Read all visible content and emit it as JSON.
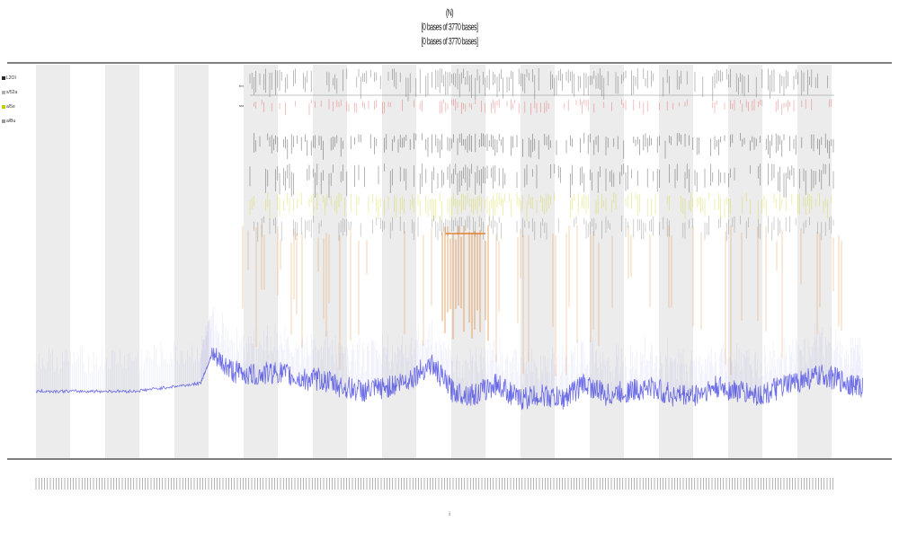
{
  "titles": [
    "(N)",
    "[0 bases of 3770 bases]",
    "[0 bases of 3770 bases]"
  ],
  "legend": [
    {
      "label": "L2OI",
      "color": "#2a2a2a"
    },
    {
      "label": "s/52a",
      "color": "#b0b0b0"
    },
    {
      "label": "a/5e",
      "color": "#c8c800"
    },
    {
      "label": "a/Bu",
      "color": "#999999"
    }
  ],
  "tracks": {
    "label_1": "frnt/nt",
    "label_2": "ssm"
  },
  "xlabel": "i",
  "colors": {
    "coverage": "#3333dd",
    "orange": "#e07010",
    "yellow": "#cccc00",
    "red": "#e03030",
    "band": "#ececec",
    "dark": "#222222"
  },
  "chart_data": {
    "type": "area",
    "title": "",
    "xlabel": "i",
    "ylabel": "",
    "x_range": [
      0,
      3770
    ],
    "y_range": [
      0,
      1
    ],
    "grid": false,
    "legend_position": "left",
    "series": [
      {
        "name": "",
        "x": [
          0,
          150,
          300,
          450,
          600,
          750,
          800,
          900,
          1000,
          1100,
          1200,
          1300,
          1400,
          1500,
          1600,
          1700,
          1800,
          1900,
          2000,
          2100,
          2200,
          2300,
          2400,
          2500,
          2600,
          2700,
          2800,
          2900,
          3000,
          3100,
          3200,
          3300,
          3400,
          3500,
          3600,
          3700,
          3770
        ],
        "values": [
          0.17,
          0.17,
          0.17,
          0.17,
          0.18,
          0.19,
          0.26,
          0.22,
          0.21,
          0.22,
          0.2,
          0.2,
          0.18,
          0.17,
          0.18,
          0.2,
          0.24,
          0.17,
          0.16,
          0.19,
          0.15,
          0.16,
          0.15,
          0.19,
          0.16,
          0.17,
          0.18,
          0.16,
          0.16,
          0.18,
          0.17,
          0.16,
          0.18,
          0.2,
          0.21,
          0.19,
          0.18
        ]
      }
    ]
  }
}
